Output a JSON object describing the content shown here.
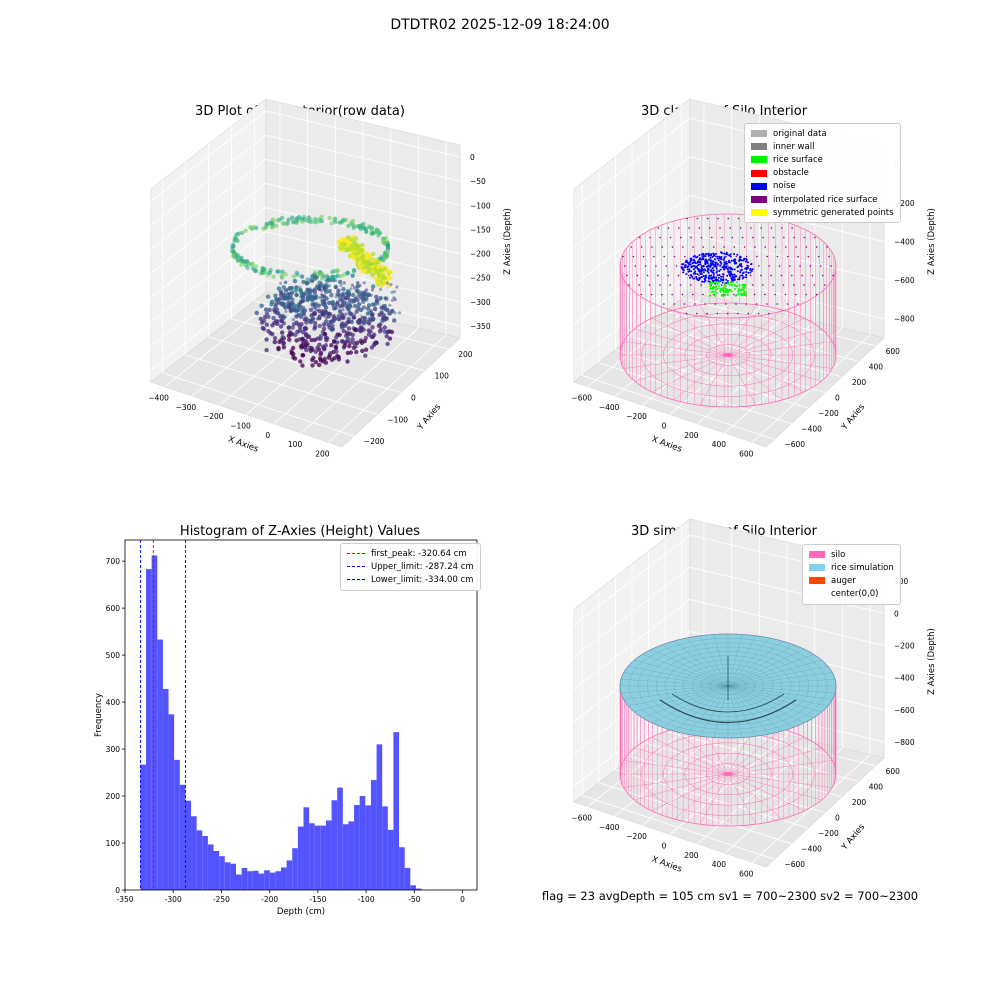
{
  "figure": {
    "suptitle": "DTDTR02 2025-12-09 18:24:00",
    "info_line": "flag = 23  avgDepth = 105 cm  sv1 = 700~2300  sv2 = 700~2300"
  },
  "colors": {
    "bar": "#4b4bff",
    "silo_wire": "#ff69b4",
    "rice_surface": "#87cedf",
    "noise": "#0000ff",
    "rice_points": "#00ff00",
    "peak_line": "#ff0000",
    "limit_line": "#0000ff"
  },
  "chart_data": [
    {
      "type": "scatter",
      "title": "3D Plot of Silo Interior(row data)",
      "xlabel": "X Axies",
      "ylabel": "Y Axies",
      "zlabel": "Z Axies (Depth)",
      "x_ticks": [
        "−400",
        "−300",
        "−200",
        "−100",
        "0",
        "100",
        "200"
      ],
      "y_ticks": [
        "−200",
        "−100",
        "0",
        "100",
        "200"
      ],
      "z_ticks": [
        "0",
        "−50",
        "−100",
        "−150",
        "−200",
        "−250",
        "−300",
        "−350"
      ]
    },
    {
      "type": "scatter",
      "title": "3D classify of Silo Interior",
      "xlabel": "X Axies",
      "ylabel": "Y Axies",
      "zlabel": "Z Axies (Depth)",
      "x_ticks": [
        "−600",
        "−400",
        "−200",
        "0",
        "200",
        "400",
        "600"
      ],
      "y_ticks": [
        "−600",
        "−400",
        "−200",
        "0",
        "200",
        "400",
        "600"
      ],
      "z_ticks": [
        "0",
        "−200",
        "−400",
        "−600",
        "−800"
      ],
      "legend": [
        {
          "label": "original data",
          "color": "#b0b0b0"
        },
        {
          "label": "inner wall",
          "color": "#808080"
        },
        {
          "label": "rice surface",
          "color": "#00ee00"
        },
        {
          "label": "obstacle",
          "color": "#ff0000"
        },
        {
          "label": "noise",
          "color": "#0000ee"
        },
        {
          "label": "interpolated rice surface",
          "color": "#800080"
        },
        {
          "label": "symmetric generated points",
          "color": "#ffff00"
        }
      ]
    },
    {
      "type": "bar",
      "title": "Histogram of Z-Axies (Height) Values",
      "xlabel": "Depth (cm)",
      "ylabel": "Frequency",
      "xlim": [
        -350,
        15
      ],
      "ylim": [
        0,
        745
      ],
      "x_ticks": [
        -350,
        -300,
        -250,
        -200,
        -150,
        -100,
        -50,
        0
      ],
      "y_ticks": [
        0,
        100,
        200,
        300,
        400,
        500,
        600,
        700
      ],
      "bin_start": -334,
      "bin_width": 5.83,
      "values": [
        267,
        683,
        712,
        533,
        428,
        374,
        277,
        224,
        190,
        157,
        127,
        115,
        97,
        83,
        72,
        59,
        56,
        33,
        47,
        40,
        41,
        35,
        42,
        37,
        40,
        48,
        63,
        89,
        135,
        176,
        142,
        137,
        137,
        148,
        191,
        218,
        140,
        146,
        181,
        200,
        180,
        234,
        310,
        178,
        128,
        336,
        91,
        47,
        10,
        3
      ],
      "lines": [
        {
          "label": "first_peak: -320.64 cm",
          "x": -320.64,
          "color": "#ff0000"
        },
        {
          "label": "Upper_limit: -287.24 cm",
          "x": -287.24,
          "color": "#0000ff"
        },
        {
          "label": "Lower_limit: -334.00 cm",
          "x": -334.0,
          "color": "#0000ff"
        }
      ]
    },
    {
      "type": "area",
      "title": "3D simulation of Silo Interior",
      "xlabel": "X Axies",
      "ylabel": "Y Axies",
      "zlabel": "Z Axies (Depth)",
      "x_ticks": [
        "−600",
        "−400",
        "−200",
        "0",
        "200",
        "400",
        "600"
      ],
      "y_ticks": [
        "−600",
        "−400",
        "−200",
        "0",
        "200",
        "400",
        "600"
      ],
      "z_ticks": [
        "200",
        "0",
        "−200",
        "−400",
        "−600",
        "−800"
      ],
      "legend": [
        {
          "label": "silo",
          "color": "#ff69b4"
        },
        {
          "label": "rice simulation",
          "color": "#87ceeb"
        },
        {
          "label": "auger",
          "color": "#ff4500"
        },
        {
          "label": "center(0,0)",
          "color": ""
        }
      ]
    }
  ]
}
